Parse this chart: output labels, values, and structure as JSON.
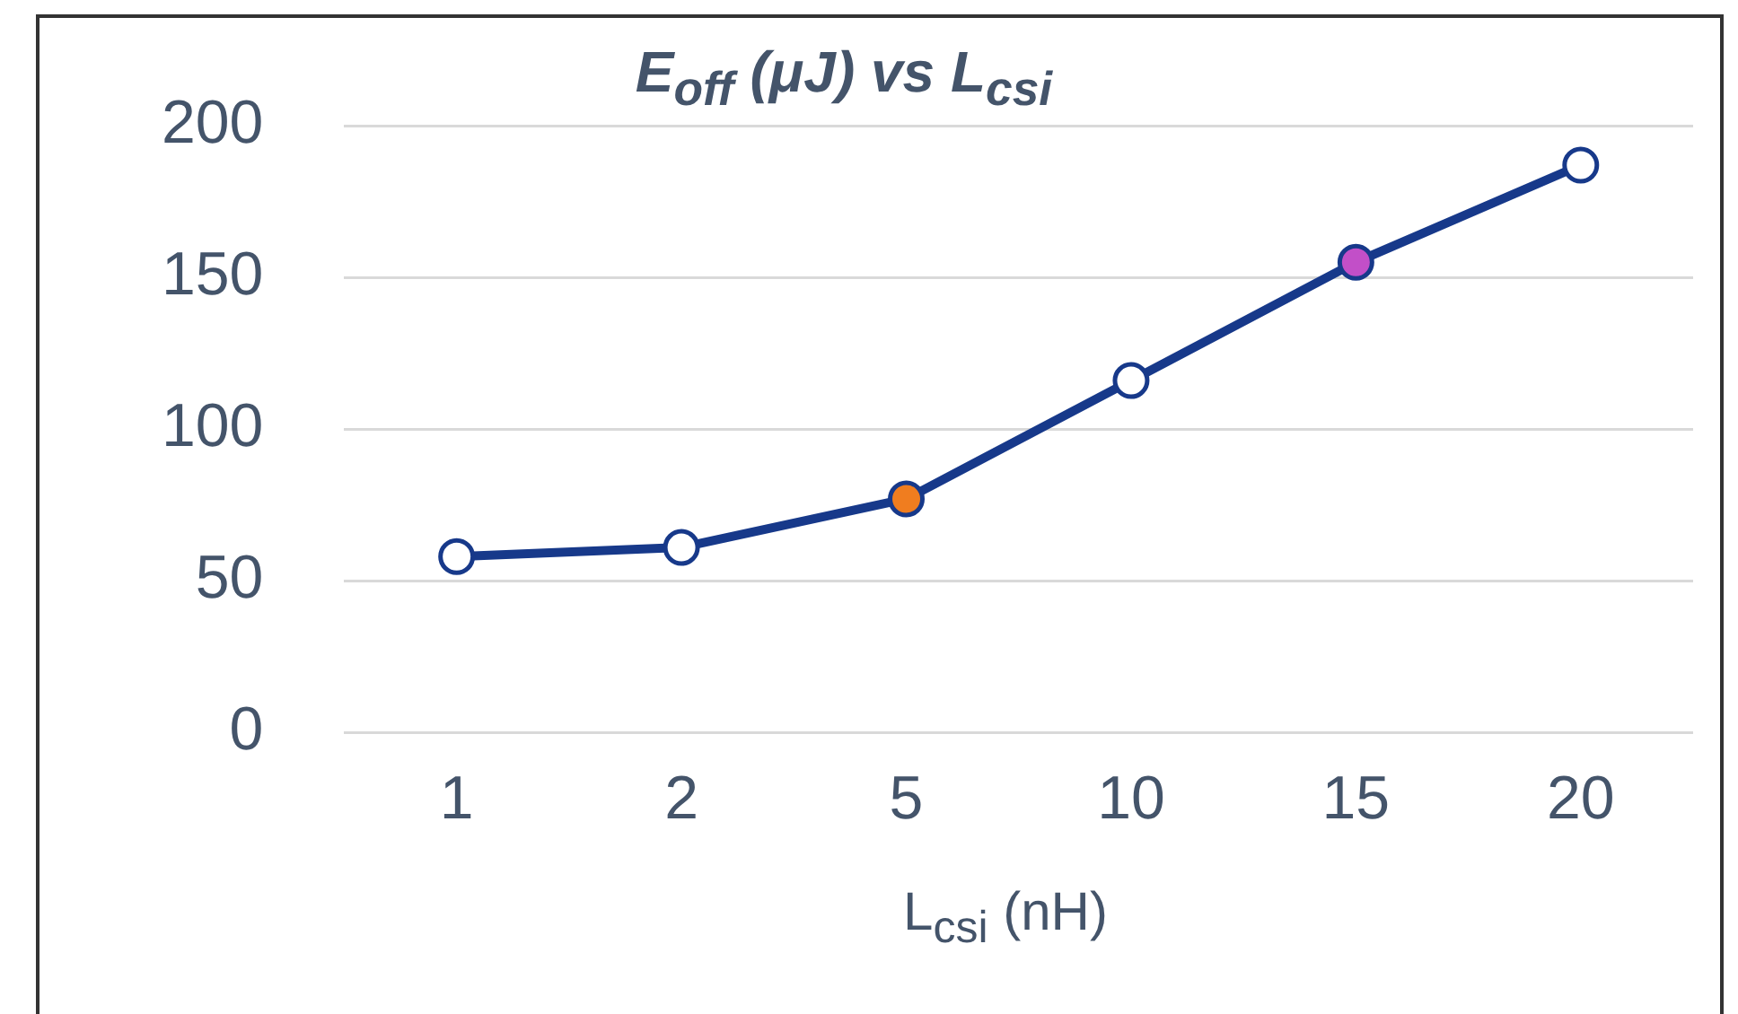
{
  "chart_data": {
    "type": "line",
    "title": "E$_{off}$ (μJ) vs L$_{csi}$",
    "xlabel": "L$_{csi}$ (nH)",
    "categories": [
      "1",
      "2",
      "5",
      "10",
      "15",
      "20"
    ],
    "series": [
      {
        "color": "#17398a",
        "colors": [
          "#ffffff",
          "#ffffff",
          "#f07d1f",
          "#ffffff",
          "#c24fc8",
          "#ffffff"
        ],
        "values": [
          58,
          61,
          77,
          116,
          155,
          187
        ]
      }
    ],
    "ylim": [
      0,
      200
    ],
    "yticks": [
      0,
      50,
      100,
      150,
      200
    ],
    "grid": "y",
    "legend": false,
    "marker": "circle",
    "line_style": "solid"
  }
}
